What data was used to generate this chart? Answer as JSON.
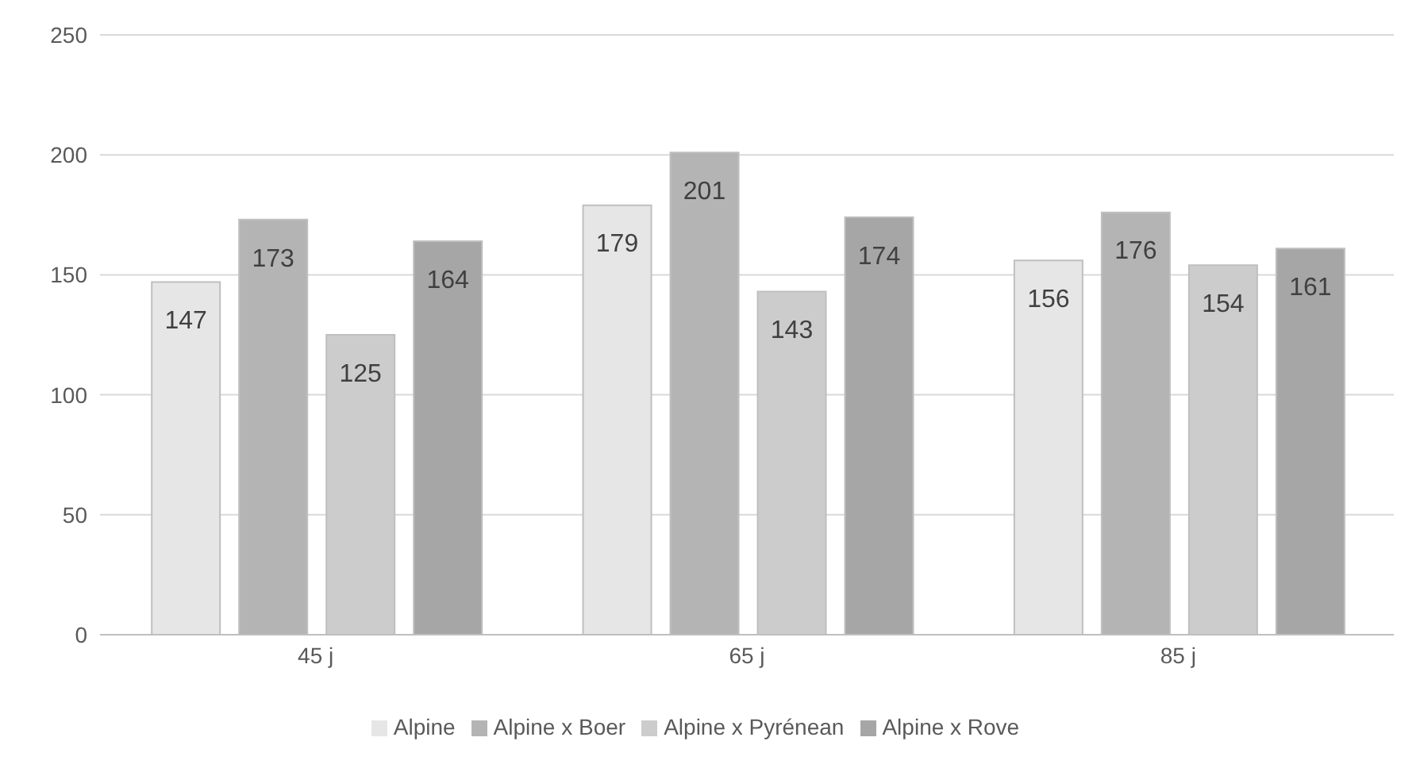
{
  "chart_data": {
    "type": "bar",
    "categories": [
      "45 j",
      "65 j",
      "85 j"
    ],
    "series": [
      {
        "name": "Alpine",
        "color": "#e6e6e6",
        "values": [
          147,
          179,
          156
        ]
      },
      {
        "name": "Alpine x Boer",
        "color": "#b4b4b4",
        "values": [
          173,
          201,
          176
        ]
      },
      {
        "name": "Alpine x Pyrénean",
        "color": "#cccccc",
        "values": [
          125,
          143,
          154
        ]
      },
      {
        "name": "Alpine x Rove",
        "color": "#a6a6a6",
        "values": [
          164,
          174,
          161
        ]
      }
    ],
    "ylim": [
      0,
      250
    ],
    "yticks": [
      0,
      50,
      100,
      150,
      200,
      250
    ],
    "grid": "y",
    "legend": "bottom",
    "data_labels": true
  }
}
